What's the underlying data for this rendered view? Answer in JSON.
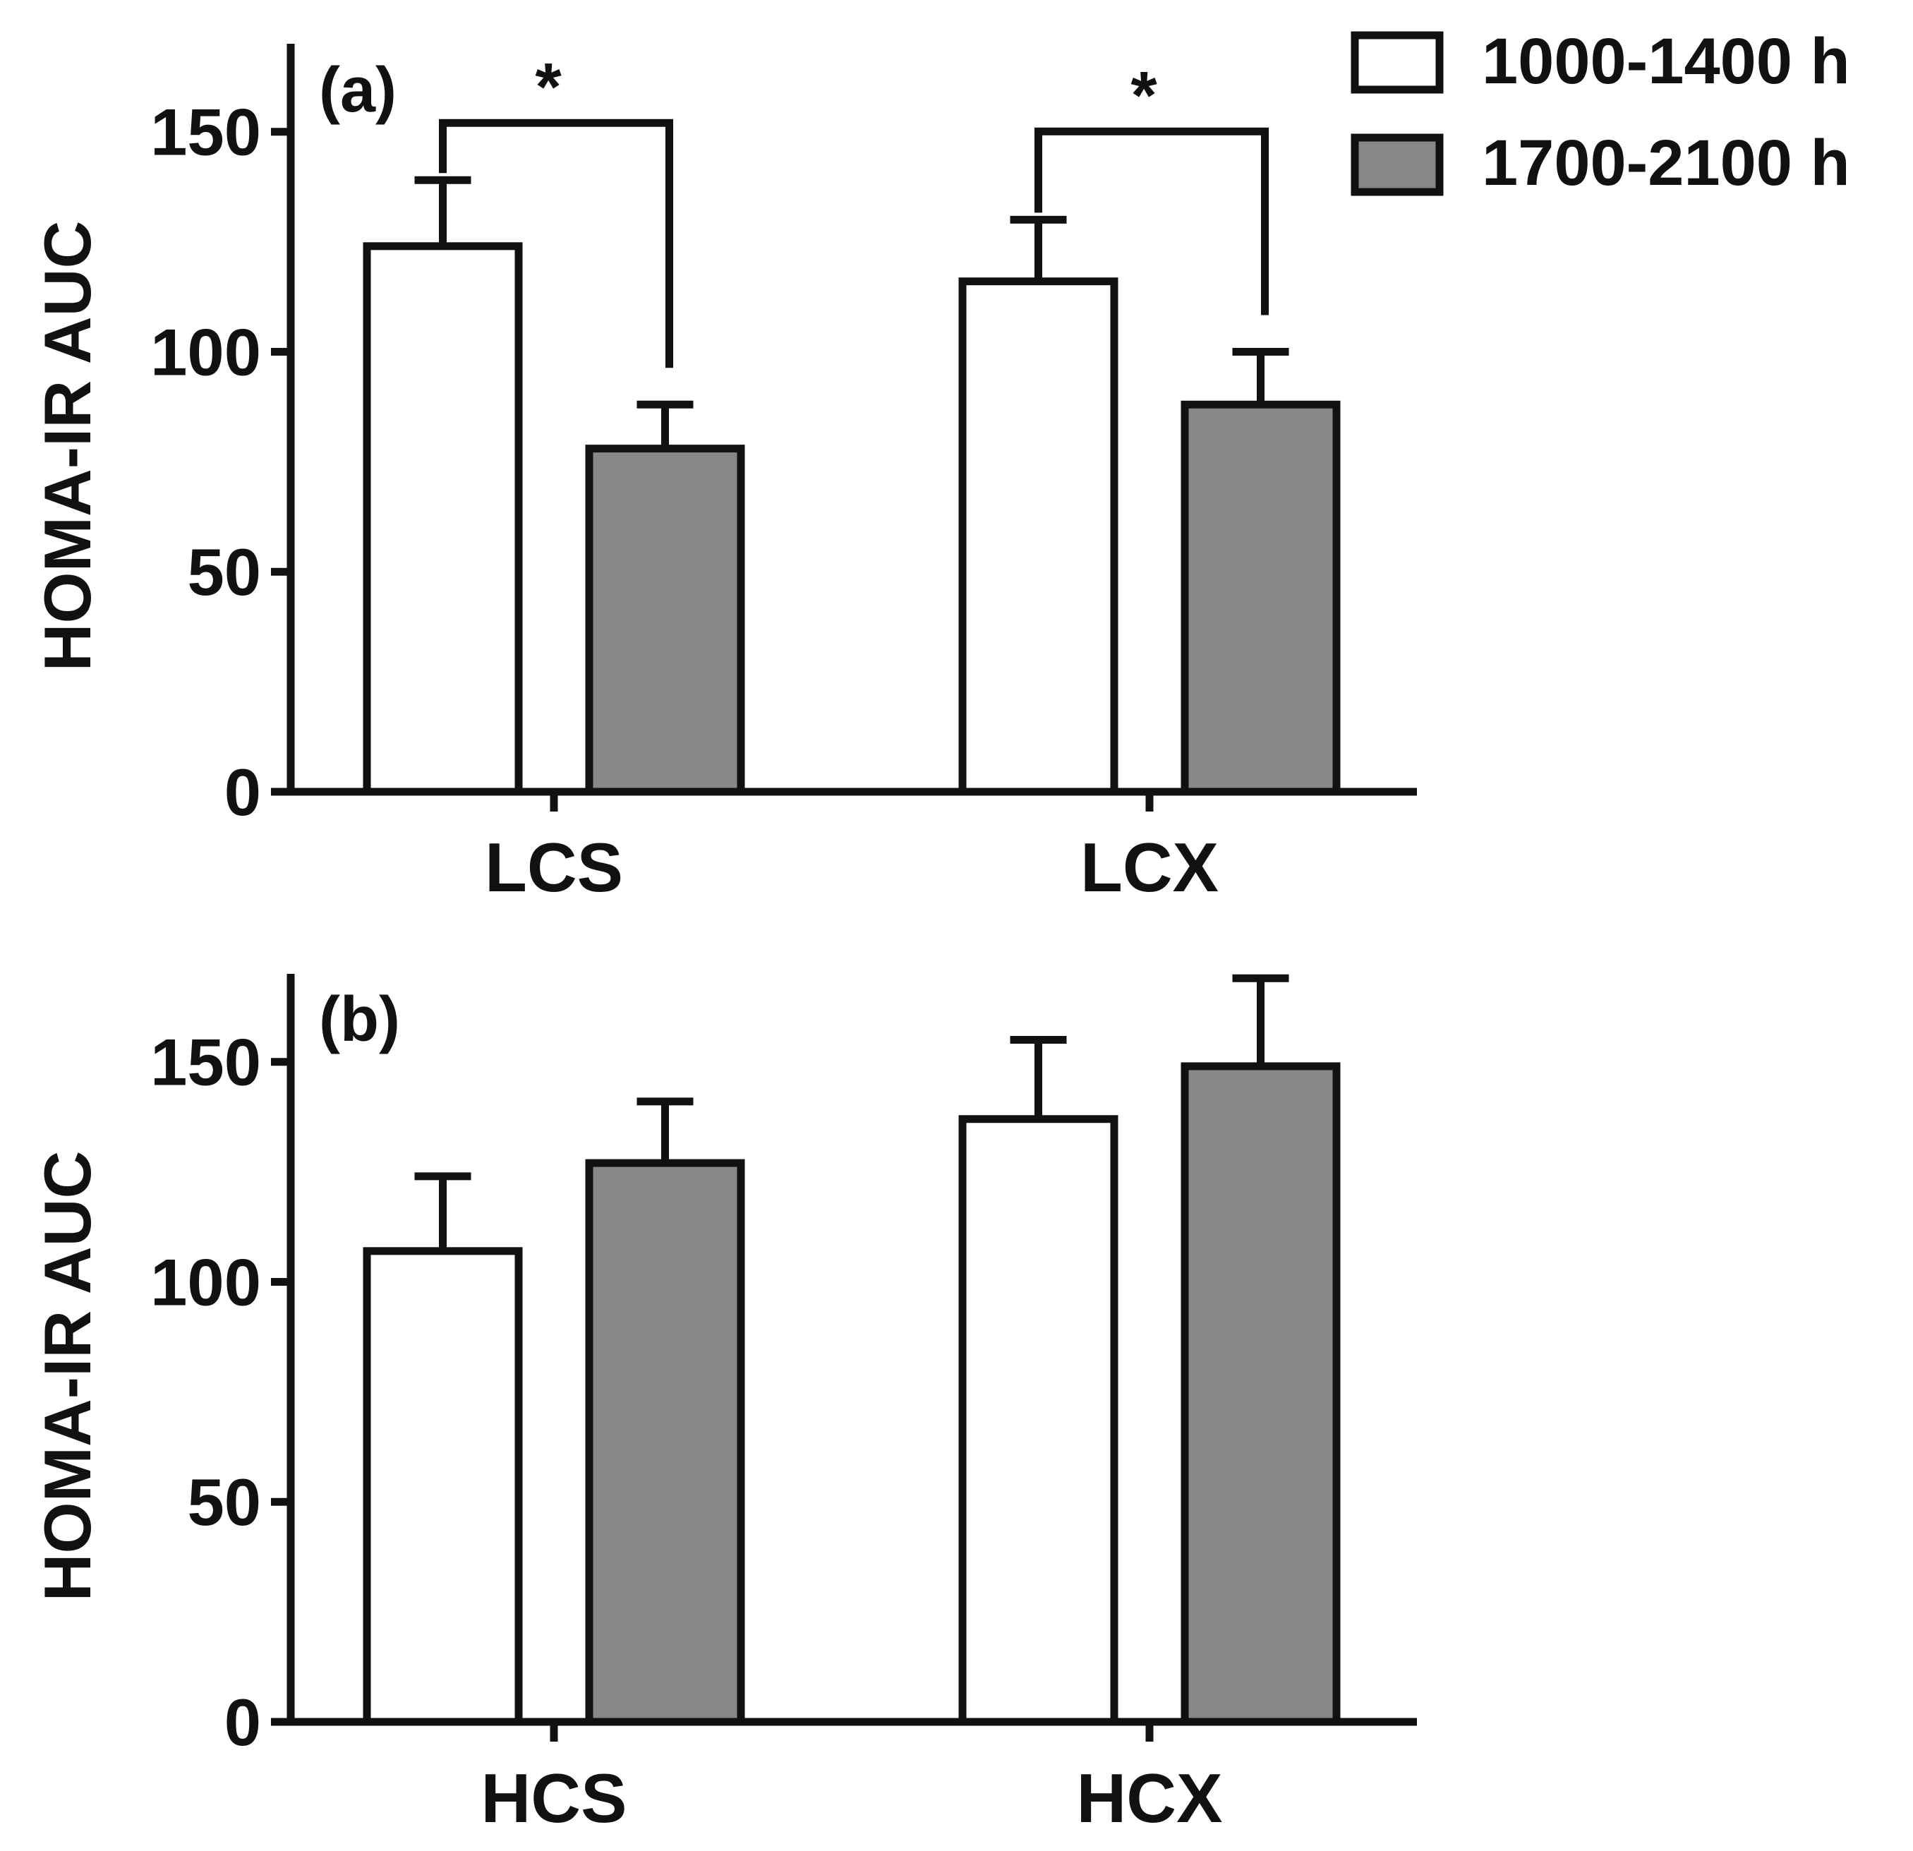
{
  "legend": {
    "entries": [
      {
        "label": "1000-1400 h",
        "color": "#ffffff"
      },
      {
        "label": "1700-2100 h",
        "color": "#888888"
      }
    ]
  },
  "chart_data": [
    {
      "type": "bar",
      "panel_label": "(a)",
      "ylabel": "HOMA-IR AUC",
      "ylim": [
        0,
        170
      ],
      "yticks": [
        0,
        50,
        100,
        150
      ],
      "categories": [
        "LCS",
        "LCX"
      ],
      "series": [
        {
          "name": "1000-1400 h",
          "color": "#ffffff",
          "values": [
            124,
            116
          ],
          "errors": [
            15,
            14
          ]
        },
        {
          "name": "1700-2100 h",
          "color": "#888888",
          "values": [
            78,
            88
          ],
          "errors": [
            10,
            12
          ]
        }
      ],
      "significance": [
        {
          "category": "LCS",
          "label": "*"
        },
        {
          "category": "LCX",
          "label": "*"
        }
      ]
    },
    {
      "type": "bar",
      "panel_label": "(b)",
      "ylabel": "HOMA-IR AUC",
      "ylim": [
        0,
        170
      ],
      "yticks": [
        0,
        50,
        100,
        150
      ],
      "categories": [
        "HCS",
        "HCX"
      ],
      "series": [
        {
          "name": "1000-1400 h",
          "color": "#ffffff",
          "values": [
            107,
            137
          ],
          "errors": [
            17,
            18
          ]
        },
        {
          "name": "1700-2100 h",
          "color": "#888888",
          "values": [
            127,
            149
          ],
          "errors": [
            14,
            20
          ]
        }
      ],
      "significance": []
    }
  ]
}
